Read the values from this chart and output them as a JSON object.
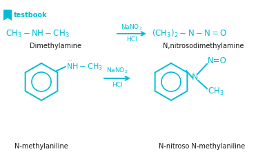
{
  "bg_color": "#ffffff",
  "teal": "#00BCD4",
  "black": "#1a1a1a",
  "logo_text": "testbook",
  "top_reactant": "CH$_3$ − NH − CH$_3$",
  "top_product": "(CH$_3$)$_2$ − N − N=O",
  "top_reactant_label": "Dimethylamine",
  "top_product_label": "N,nitrosodimethylamine",
  "arrow_reagent_top": "NaNO$_2$",
  "arrow_reagent_bot": "HCl",
  "bot_reactant_label": "N-methylaniline",
  "bot_product_label": "N-nitroso N-methylaniline"
}
